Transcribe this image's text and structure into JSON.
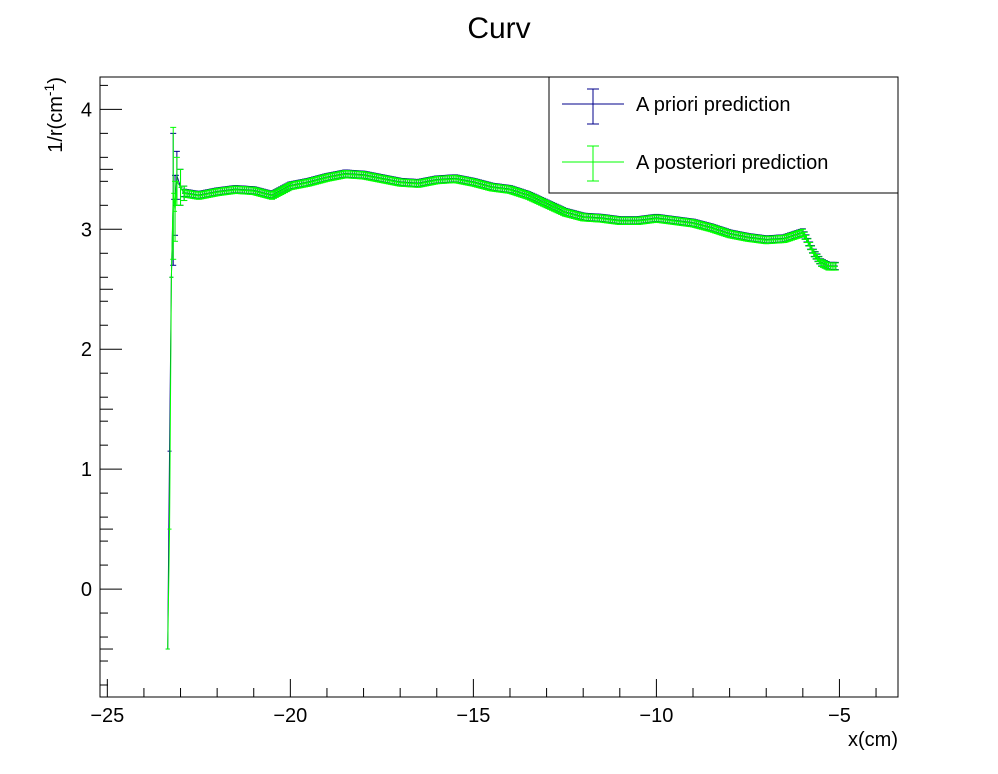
{
  "chart_data": {
    "type": "scatter",
    "title": "Curv",
    "xlabel": "x(cm)",
    "ylabel_base": "1/r(cm",
    "ylabel_sup": "-1",
    "ylabel_close": ")",
    "xlim": [
      -25.2,
      -3.4
    ],
    "ylim": [
      -0.9,
      4.27
    ],
    "xticks": [
      -25,
      -20,
      -15,
      -10,
      -5
    ],
    "xtick_labels": [
      "−25",
      "−20",
      "−15",
      "−10",
      "−5"
    ],
    "yticks": [
      0,
      1,
      2,
      3,
      4
    ],
    "ytick_labels": [
      "0",
      "1",
      "2",
      "3",
      "4"
    ],
    "grid": false,
    "legend_position": "top-right",
    "series": [
      {
        "name": "A priori prediction",
        "color": "#00008b",
        "points": [
          [
            -23.35,
            -0.5,
            0.0
          ],
          [
            -23.3,
            1.15,
            0.0
          ],
          [
            -23.25,
            2.6,
            0.0
          ],
          [
            -23.2,
            3.25,
            0.55
          ],
          [
            -23.15,
            3.2,
            0.25
          ],
          [
            -23.1,
            3.45,
            0.2
          ],
          [
            -23.0,
            3.35,
            0.15
          ],
          [
            -22.9,
            3.3,
            0.06
          ]
        ]
      },
      {
        "name": "A posteriori prediction",
        "color": "#00ff00",
        "points": [
          [
            -23.35,
            -0.5,
            0.0
          ],
          [
            -23.3,
            0.5,
            0.0
          ],
          [
            -23.25,
            2.6,
            0.0
          ],
          [
            -23.2,
            3.3,
            0.55
          ],
          [
            -23.15,
            3.15,
            0.25
          ],
          [
            -23.1,
            3.4,
            0.2
          ],
          [
            -23.0,
            3.35,
            0.15
          ],
          [
            -22.9,
            3.3,
            0.06
          ]
        ]
      }
    ],
    "profile": {
      "x": [
        -22.9,
        -22.5,
        -22.0,
        -21.5,
        -21.0,
        -20.5,
        -20.0,
        -19.5,
        -19.0,
        -18.5,
        -18.0,
        -17.5,
        -17.0,
        -16.5,
        -16.0,
        -15.5,
        -15.0,
        -14.5,
        -14.0,
        -13.5,
        -13.0,
        -12.5,
        -12.0,
        -11.5,
        -11.0,
        -10.5,
        -10.0,
        -9.5,
        -9.0,
        -8.5,
        -8.0,
        -7.5,
        -7.0,
        -6.5,
        -6.2,
        -6.0,
        -5.9,
        -5.7,
        -5.5,
        -5.3,
        -5.1
      ],
      "y": [
        3.3,
        3.28,
        3.31,
        3.33,
        3.32,
        3.28,
        3.36,
        3.39,
        3.43,
        3.46,
        3.45,
        3.42,
        3.39,
        3.38,
        3.41,
        3.42,
        3.39,
        3.35,
        3.33,
        3.28,
        3.21,
        3.14,
        3.1,
        3.09,
        3.07,
        3.07,
        3.09,
        3.07,
        3.05,
        3.01,
        2.96,
        2.93,
        2.91,
        2.92,
        2.95,
        2.97,
        2.92,
        2.8,
        2.72,
        2.69,
        2.69
      ],
      "step": 0.05,
      "error": 0.03
    }
  }
}
